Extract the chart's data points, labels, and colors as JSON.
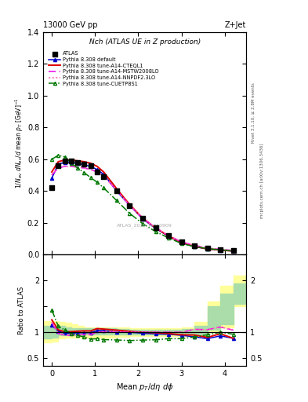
{
  "title_top": "13000 GeV pp",
  "title_right": "Z+Jet",
  "plot_title": "Nch (ATLAS UE in Z production)",
  "ylabel_main": "1/N_{ev} dN_{ev}/d mean p_{T} [GeV]^{-1}",
  "ylabel_ratio": "Ratio to ATLAS",
  "xlabel": "Mean p_{T}/dη dφ",
  "watermark": "ATLAS_2019_I1740909",
  "right_label1": "Rivet 3.1.10, ≥ 2.8M events",
  "right_label2": "mcplots.cern.ch [arXiv:1306.3436]",
  "xlim": [
    -0.2,
    4.5
  ],
  "ylim_main": [
    0.0,
    1.4
  ],
  "ylim_ratio": [
    0.35,
    2.5
  ],
  "atlas_x": [
    0.0,
    0.15,
    0.3,
    0.45,
    0.6,
    0.75,
    0.9,
    1.05,
    1.2,
    1.5,
    1.8,
    2.1,
    2.4,
    2.7,
    3.0,
    3.3,
    3.6,
    3.9,
    4.2
  ],
  "atlas_y": [
    0.42,
    0.56,
    0.59,
    0.59,
    0.58,
    0.57,
    0.56,
    0.52,
    0.49,
    0.4,
    0.31,
    0.23,
    0.17,
    0.12,
    0.08,
    0.055,
    0.04,
    0.03,
    0.025
  ],
  "default_x": [
    0.0,
    0.15,
    0.3,
    0.45,
    0.6,
    0.75,
    0.9,
    1.05,
    1.2,
    1.5,
    1.8,
    2.1,
    2.4,
    2.7,
    3.0,
    3.3,
    3.6,
    3.9,
    4.2
  ],
  "default_y": [
    0.48,
    0.57,
    0.58,
    0.58,
    0.575,
    0.565,
    0.555,
    0.535,
    0.505,
    0.4,
    0.31,
    0.225,
    0.165,
    0.115,
    0.075,
    0.05,
    0.035,
    0.028,
    0.022
  ],
  "cteq_x": [
    0.0,
    0.15,
    0.3,
    0.45,
    0.6,
    0.75,
    0.9,
    1.05,
    1.2,
    1.5,
    1.8,
    2.1,
    2.4,
    2.7,
    3.0,
    3.3,
    3.6,
    3.9,
    4.2
  ],
  "cteq_y": [
    0.52,
    0.585,
    0.595,
    0.595,
    0.59,
    0.585,
    0.575,
    0.555,
    0.52,
    0.415,
    0.315,
    0.23,
    0.168,
    0.117,
    0.076,
    0.052,
    0.036,
    0.029,
    0.022
  ],
  "mstw_x": [
    0.0,
    0.15,
    0.3,
    0.45,
    0.6,
    0.75,
    0.9,
    1.05,
    1.2,
    1.5,
    1.8,
    2.1,
    2.4,
    2.7,
    3.0,
    3.3,
    3.6,
    3.9,
    4.2
  ],
  "mstw_y": [
    0.5,
    0.545,
    0.555,
    0.555,
    0.55,
    0.545,
    0.535,
    0.52,
    0.495,
    0.405,
    0.31,
    0.23,
    0.17,
    0.12,
    0.08,
    0.058,
    0.042,
    0.033,
    0.026
  ],
  "nnpdf_x": [
    0.0,
    0.15,
    0.3,
    0.45,
    0.6,
    0.75,
    0.9,
    1.05,
    1.2,
    1.5,
    1.8,
    2.1,
    2.4,
    2.7,
    3.0,
    3.3,
    3.6,
    3.9,
    4.2
  ],
  "nnpdf_y": [
    0.505,
    0.55,
    0.555,
    0.555,
    0.55,
    0.545,
    0.535,
    0.52,
    0.495,
    0.405,
    0.31,
    0.23,
    0.17,
    0.12,
    0.08,
    0.058,
    0.042,
    0.033,
    0.026
  ],
  "cuetp_x": [
    0.0,
    0.15,
    0.3,
    0.45,
    0.6,
    0.75,
    0.9,
    1.05,
    1.2,
    1.5,
    1.8,
    2.1,
    2.4,
    2.7,
    3.0,
    3.3,
    3.6,
    3.9,
    4.2
  ],
  "cuetp_y": [
    0.6,
    0.625,
    0.615,
    0.575,
    0.545,
    0.515,
    0.485,
    0.455,
    0.42,
    0.34,
    0.26,
    0.195,
    0.145,
    0.105,
    0.07,
    0.05,
    0.038,
    0.03,
    0.024
  ],
  "ratio_default_y": [
    1.14,
    1.02,
    0.98,
    0.98,
    0.99,
    0.99,
    0.99,
    1.03,
    1.03,
    1.0,
    1.0,
    0.98,
    0.97,
    0.96,
    0.94,
    0.91,
    0.875,
    0.93,
    0.88
  ],
  "ratio_cteq_y": [
    1.24,
    1.045,
    1.01,
    1.01,
    1.02,
    1.025,
    1.025,
    1.07,
    1.06,
    1.04,
    1.016,
    1.0,
    0.99,
    0.975,
    0.95,
    0.945,
    0.9,
    0.97,
    0.88
  ],
  "ratio_mstw_y": [
    1.19,
    0.975,
    0.94,
    0.94,
    0.948,
    0.956,
    0.955,
    1.0,
    1.01,
    1.01,
    1.0,
    1.0,
    1.0,
    1.0,
    1.0,
    1.055,
    1.05,
    1.1,
    1.04
  ],
  "ratio_nnpdf_y": [
    1.2,
    0.982,
    0.941,
    0.941,
    0.948,
    0.956,
    0.955,
    1.0,
    1.01,
    1.01,
    1.0,
    1.0,
    1.0,
    1.0,
    1.0,
    1.055,
    1.05,
    1.1,
    1.04
  ],
  "ratio_cuetp_y": [
    1.43,
    1.116,
    1.042,
    0.975,
    0.94,
    0.904,
    0.866,
    0.875,
    0.857,
    0.85,
    0.839,
    0.848,
    0.853,
    0.875,
    0.875,
    0.909,
    0.95,
    1.0,
    0.96
  ],
  "band_x": [
    -0.2,
    0.0,
    0.15,
    0.3,
    0.45,
    0.6,
    0.75,
    0.9,
    1.05,
    1.2,
    1.5,
    1.8,
    2.1,
    2.4,
    2.7,
    3.0,
    3.3,
    3.6,
    3.9,
    4.2,
    4.5
  ],
  "band_yellow_lo": [
    0.8,
    0.82,
    0.88,
    0.89,
    0.89,
    0.89,
    0.9,
    0.9,
    0.9,
    0.9,
    0.91,
    0.92,
    0.92,
    0.92,
    0.92,
    0.92,
    0.92,
    1.0,
    1.1,
    1.5,
    1.8
  ],
  "band_yellow_hi": [
    1.22,
    1.22,
    1.2,
    1.18,
    1.15,
    1.12,
    1.1,
    1.1,
    1.1,
    1.1,
    1.1,
    1.08,
    1.07,
    1.07,
    1.07,
    1.1,
    1.2,
    1.6,
    1.9,
    2.1,
    2.2
  ],
  "band_green_lo": [
    0.88,
    0.9,
    0.94,
    0.94,
    0.94,
    0.94,
    0.95,
    0.95,
    0.95,
    0.95,
    0.95,
    0.95,
    0.955,
    0.955,
    0.955,
    0.96,
    0.96,
    1.05,
    1.15,
    1.55,
    1.85
  ],
  "band_green_hi": [
    1.12,
    1.12,
    1.12,
    1.1,
    1.08,
    1.07,
    1.07,
    1.07,
    1.07,
    1.07,
    1.06,
    1.05,
    1.04,
    1.04,
    1.04,
    1.06,
    1.12,
    1.5,
    1.75,
    1.95,
    2.1
  ],
  "color_atlas": "#000000",
  "color_default": "#0000cc",
  "color_cteq": "#dd0000",
  "color_mstw": "#ee00ee",
  "color_nnpdf": "#ff69b4",
  "color_cuetp": "#007700",
  "color_yellow_band": "#ffff99",
  "color_green_band": "#aaddaa",
  "legend_entries": [
    "ATLAS",
    "Pythia 8.308 default",
    "Pythia 8.308 tune-A14-CTEQL1",
    "Pythia 8.308 tune-A14-MSTW2008LO",
    "Pythia 8.308 tune-A14-NNPDF2.3LO",
    "Pythia 8.308 tune-CUETP8S1"
  ]
}
